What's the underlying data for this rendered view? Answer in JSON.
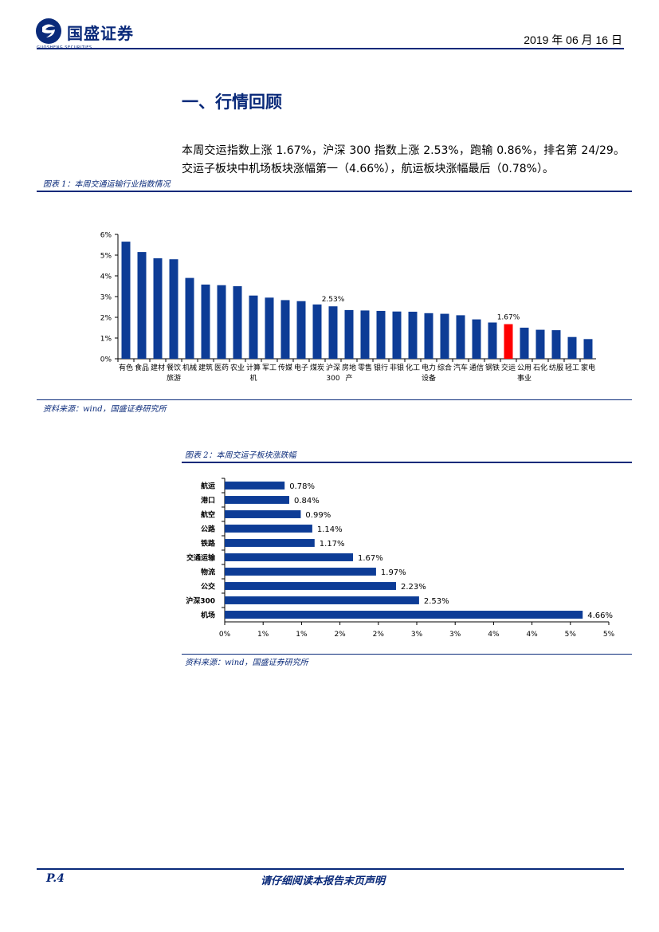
{
  "header": {
    "logo_name": "国盛证券",
    "logo_sub": "GUOSHENG SECURITIES",
    "date": "2019 年 06 月 16 日"
  },
  "section_title": "一、行情回顾",
  "paragraph": "本周交运指数上涨 1.67%，沪深 300 指数上涨 2.53%，跑输 0.86%，排名第 24/29。交运子板块中机场板块涨幅第一（4.66%），航运板块涨幅最后（0.78%）。",
  "figure1": {
    "caption": "图表 1：本周交通运输行业指数情况",
    "source": "资料来源：wind，国盛证券研究所"
  },
  "figure2": {
    "caption": "图表 2：本周交运子板块涨跌幅",
    "source": "资料来源：wind，国盛证券研究所"
  },
  "footer": {
    "page": "P.4",
    "note": "请仔细阅读本报告末页声明"
  },
  "colors": {
    "brand": "#0a2a7a",
    "bar": "#0d3c96",
    "highlight": "#ff0000"
  },
  "chart_data": [
    {
      "type": "bar",
      "categories": [
        "有色",
        "食品",
        "建材",
        "餐饮旅游",
        "机械",
        "建筑",
        "医药",
        "农业",
        "计算机",
        "军工",
        "传媒",
        "电子",
        "煤炭",
        "沪深300",
        "房地产",
        "零售",
        "银行",
        "非银",
        "化工",
        "电力设备",
        "综合",
        "汽车",
        "通信",
        "钢铁",
        "交运",
        "公用事业",
        "石化",
        "纺服",
        "轻工",
        "家电"
      ],
      "tick_labels": [
        "有色",
        "食品",
        "建材",
        "餐饮\n旅游",
        "机械",
        "建筑",
        "医药",
        "农业",
        "计算\n机",
        "军工",
        "传媒",
        "电子",
        "煤炭",
        "沪深\n300",
        "房地\n产",
        "零售",
        "银行",
        "非银",
        "化工",
        "电力\n设备",
        "综合",
        "汽车",
        "通信",
        "钢铁",
        "交运",
        "公用\n事业",
        "石化",
        "纺服",
        "轻工",
        "家电"
      ],
      "values": [
        5.65,
        5.15,
        4.85,
        4.8,
        3.9,
        3.58,
        3.55,
        3.5,
        3.05,
        2.95,
        2.83,
        2.78,
        2.62,
        2.53,
        2.35,
        2.33,
        2.31,
        2.28,
        2.27,
        2.2,
        2.17,
        2.1,
        1.9,
        1.75,
        1.67,
        1.5,
        1.4,
        1.38,
        1.05,
        0.95
      ],
      "highlight_index": 24,
      "data_labels": {
        "13": "2.53%",
        "24": "1.67%"
      },
      "ylim": [
        0,
        6
      ],
      "yticks": [
        "0%",
        "1%",
        "2%",
        "3%",
        "4%",
        "5%",
        "6%"
      ],
      "grid": false
    },
    {
      "type": "bar",
      "orientation": "horizontal",
      "categories": [
        "航运",
        "港口",
        "航空",
        "公路",
        "铁路",
        "交通运输",
        "物流",
        "公交",
        "沪深300",
        "机场"
      ],
      "values": [
        0.78,
        0.84,
        0.99,
        1.14,
        1.17,
        1.67,
        1.97,
        2.23,
        2.53,
        4.66
      ],
      "data_labels": [
        "0.78%",
        "0.84%",
        "0.99%",
        "1.14%",
        "1.17%",
        "1.67%",
        "1.97%",
        "2.23%",
        "2.53%",
        "4.66%"
      ],
      "xlim": [
        0,
        5
      ],
      "xticks": [
        "0%",
        "1%",
        "1%",
        "2%",
        "2%",
        "3%",
        "3%",
        "4%",
        "4%",
        "5%",
        "5%"
      ],
      "grid": false
    }
  ]
}
